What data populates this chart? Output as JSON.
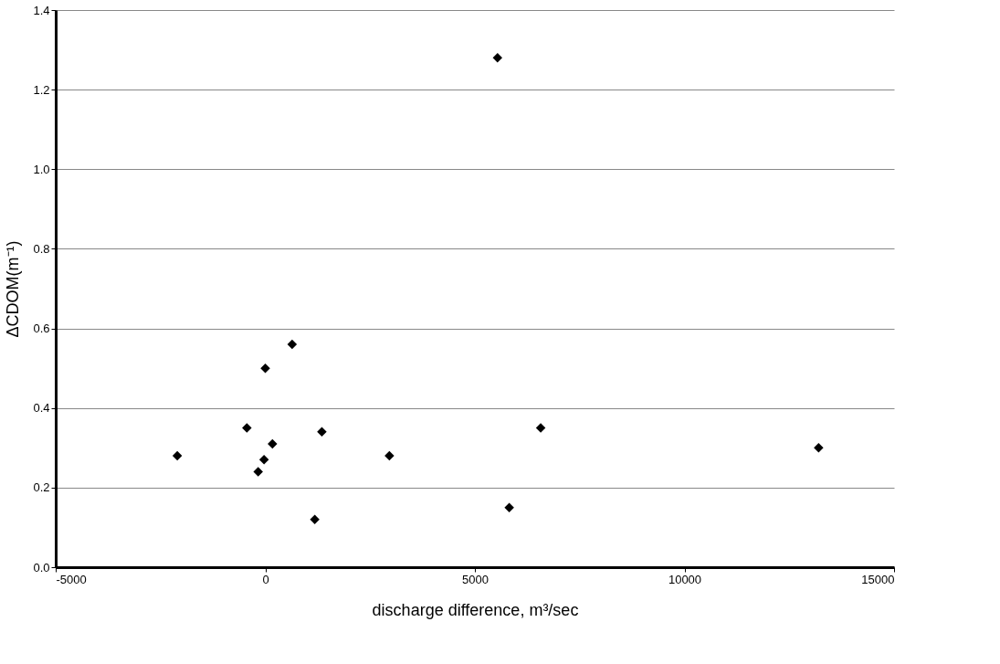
{
  "chart_data": {
    "type": "scatter",
    "xlabel": "discharge difference, m³/sec",
    "ylabel": "ΔCDOM(m⁻¹)",
    "x": [
      -2100,
      -440,
      0,
      640,
      170,
      -30,
      -170,
      1350,
      1180,
      2960,
      5540,
      6570,
      5820,
      13200
    ],
    "series": [
      {
        "color": "#000000",
        "values": [
          0.28,
          0.35,
          0.5,
          0.56,
          0.31,
          0.27,
          0.24,
          0.34,
          0.12,
          0.28,
          1.28,
          0.35,
          0.15,
          0.3
        ]
      }
    ],
    "xlim": [
      -5000,
      15000
    ],
    "xticks": [
      -5000,
      0,
      5000,
      10000,
      15000
    ],
    "ylim": [
      0,
      1.4
    ],
    "yticks": [
      {
        "value": 0,
        "label": "0.0"
      },
      {
        "value": 0.2,
        "label": "0.2"
      },
      {
        "value": 0.4,
        "label": "0.4"
      },
      {
        "value": 0.6,
        "label": "0.6"
      },
      {
        "value": 0.8,
        "label": "0.8"
      },
      {
        "value": 1.0,
        "label": "1.0"
      },
      {
        "value": 1.2,
        "label": "1.2"
      },
      {
        "value": 1.4,
        "label": "1.4"
      }
    ],
    "grid": "y",
    "marker": "diamond"
  }
}
